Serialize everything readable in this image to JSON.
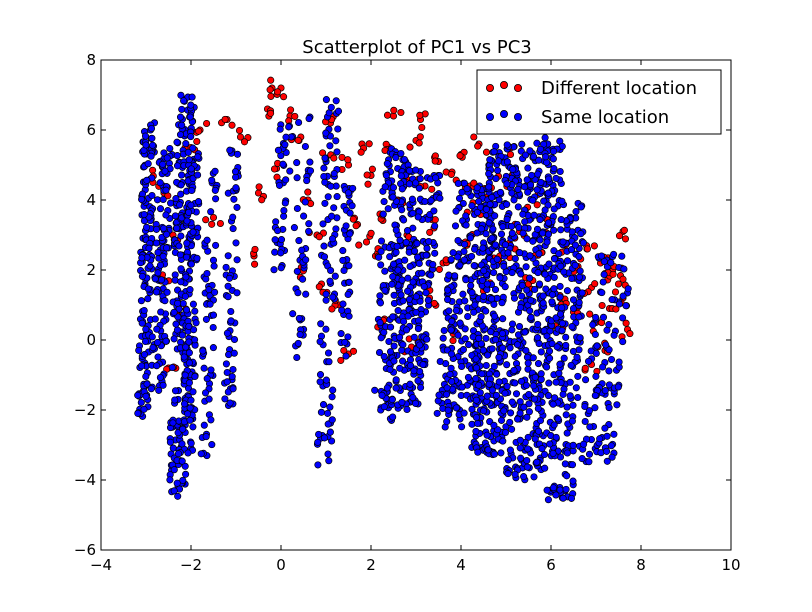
{
  "chart_data": {
    "type": "scatter",
    "title": "Scatterplot of PC1 vs PC3",
    "xlabel": "",
    "ylabel": "",
    "xlim": [
      -4,
      10
    ],
    "ylim": [
      -6,
      8
    ],
    "xticks": [
      -4,
      -2,
      0,
      2,
      4,
      6,
      8,
      10
    ],
    "yticks": [
      -6,
      -4,
      -2,
      0,
      2,
      4,
      6,
      8
    ],
    "xtick_labels": [
      "−4",
      "−2",
      "0",
      "2",
      "4",
      "6",
      "8",
      "10"
    ],
    "ytick_labels": [
      "−6",
      "−4",
      "−2",
      "0",
      "2",
      "4",
      "6",
      "8"
    ],
    "grid": false,
    "legend_position": "top-right",
    "series": [
      {
        "name": "Different location",
        "color": "#ff0000",
        "points": [
          [
            -2.9,
            4.6
          ],
          [
            -2.6,
            4.2
          ],
          [
            -2.4,
            3.0
          ],
          [
            -2.0,
            5.5
          ],
          [
            -1.8,
            6.0
          ],
          [
            -1.2,
            6.3
          ],
          [
            -0.9,
            5.8
          ],
          [
            -0.5,
            4.2
          ],
          [
            -0.3,
            6.6
          ],
          [
            -0.2,
            7.2
          ],
          [
            0.0,
            7.2
          ],
          [
            0.2,
            6.4
          ],
          [
            0.4,
            5.7
          ],
          [
            0.6,
            4.0
          ],
          [
            0.8,
            3.0
          ],
          [
            1.0,
            5.2
          ],
          [
            1.1,
            6.2
          ],
          [
            1.5,
            5.0
          ],
          [
            1.7,
            3.3
          ],
          [
            1.9,
            2.8
          ],
          [
            2.0,
            4.7
          ],
          [
            2.1,
            2.4
          ],
          [
            2.2,
            3.6
          ],
          [
            2.4,
            5.5
          ],
          [
            2.5,
            6.4
          ],
          [
            2.6,
            4.0
          ],
          [
            2.8,
            3.0
          ],
          [
            3.0,
            5.7
          ],
          [
            3.2,
            4.4
          ],
          [
            3.4,
            3.2
          ],
          [
            3.5,
            5.1
          ],
          [
            3.6,
            2.2
          ],
          [
            3.8,
            4.8
          ],
          [
            4.0,
            5.3
          ],
          [
            4.1,
            2.8
          ],
          [
            4.3,
            3.7
          ],
          [
            4.4,
            5.6
          ],
          [
            4.6,
            4.1
          ],
          [
            4.8,
            2.2
          ],
          [
            5.0,
            4.6
          ],
          [
            5.1,
            5.3
          ],
          [
            5.3,
            3.1
          ],
          [
            5.5,
            1.6
          ],
          [
            5.6,
            4.0
          ],
          [
            5.8,
            2.5
          ],
          [
            6.0,
            3.3
          ],
          [
            6.2,
            1.2
          ],
          [
            6.3,
            2.7
          ],
          [
            6.5,
            0.8
          ],
          [
            6.6,
            2.1
          ],
          [
            6.8,
            2.6
          ],
          [
            6.9,
            1.5
          ],
          [
            7.0,
            0.5
          ],
          [
            7.1,
            2.2
          ],
          [
            7.2,
            1.9
          ],
          [
            7.3,
            0.9
          ],
          [
            7.4,
            2.1
          ],
          [
            7.5,
            1.6
          ],
          [
            7.6,
            1.2
          ],
          [
            7.7,
            0.3
          ],
          [
            7.6,
            3.1
          ],
          [
            6.9,
            -0.7
          ],
          [
            7.2,
            -0.3
          ],
          [
            1.5,
            -0.4
          ],
          [
            1.3,
            1.0
          ],
          [
            2.3,
            0.6
          ],
          [
            3.3,
            1.2
          ],
          [
            2.9,
            -0.2
          ],
          [
            0.5,
            2.0
          ],
          [
            -0.6,
            2.4
          ],
          [
            -2.2,
            0.7
          ],
          [
            -2.6,
            1.7
          ],
          [
            -2.5,
            -0.8
          ],
          [
            4.5,
            1.4
          ],
          [
            3.9,
            0.2
          ],
          [
            5.2,
            2.6
          ],
          [
            6.1,
            0.4
          ],
          [
            4.2,
            4.4
          ],
          [
            2.7,
            4.7
          ],
          [
            1.8,
            5.6
          ],
          [
            3.1,
            6.3
          ],
          [
            -1.5,
            3.5
          ],
          [
            -0.1,
            4.9
          ],
          [
            0.9,
            1.6
          ]
        ]
      },
      {
        "name": "Same location",
        "color": "#0000ff",
        "clusters": [
          {
            "x": [
              -3.2,
              -2.8
            ],
            "y": [
              -2.2,
              6.3
            ]
          },
          {
            "x": [
              -2.9,
              -2.4
            ],
            "y": [
              -1.5,
              5.5
            ]
          },
          {
            "x": [
              -2.5,
              -1.9
            ],
            "y": [
              -4.5,
              7.0
            ]
          },
          {
            "x": [
              -2.2,
              -1.8
            ],
            "y": [
              -3.5,
              5.5
            ]
          },
          {
            "x": [
              -1.8,
              -1.4
            ],
            "y": [
              -3.4,
              5.0
            ]
          },
          {
            "x": [
              -1.3,
              -0.9
            ],
            "y": [
              -2.0,
              5.5
            ]
          },
          {
            "x": [
              -0.2,
              0.3
            ],
            "y": [
              2.0,
              6.6
            ]
          },
          {
            "x": [
              0.2,
              0.7
            ],
            "y": [
              -0.5,
              6.5
            ]
          },
          {
            "x": [
              0.8,
              1.3
            ],
            "y": [
              -3.6,
              7.0
            ]
          },
          {
            "x": [
              1.3,
              1.6
            ],
            "y": [
              -0.5,
              4.5
            ]
          },
          {
            "x": [
              2.0,
              2.8
            ],
            "y": [
              -2.5,
              5.5
            ]
          },
          {
            "x": [
              2.2,
              3.6
            ],
            "y": [
              -2.0,
              5.0
            ]
          },
          {
            "x": [
              3.4,
              4.8
            ],
            "y": [
              -2.5,
              4.5
            ]
          },
          {
            "x": [
              4.2,
              5.4
            ],
            "y": [
              -3.3,
              5.6
            ]
          },
          {
            "x": [
              5.0,
              6.3
            ],
            "y": [
              -4.0,
              5.8
            ]
          },
          {
            "x": [
              5.9,
              6.8
            ],
            "y": [
              -4.6,
              4.0
            ]
          },
          {
            "x": [
              6.6,
              7.8
            ],
            "y": [
              -3.5,
              2.5
            ]
          }
        ],
        "points_per_cluster": [
          150,
          110,
          220,
          120,
          60,
          60,
          40,
          45,
          90,
          40,
          110,
          260,
          260,
          330,
          360,
          190,
          110
        ]
      }
    ]
  }
}
